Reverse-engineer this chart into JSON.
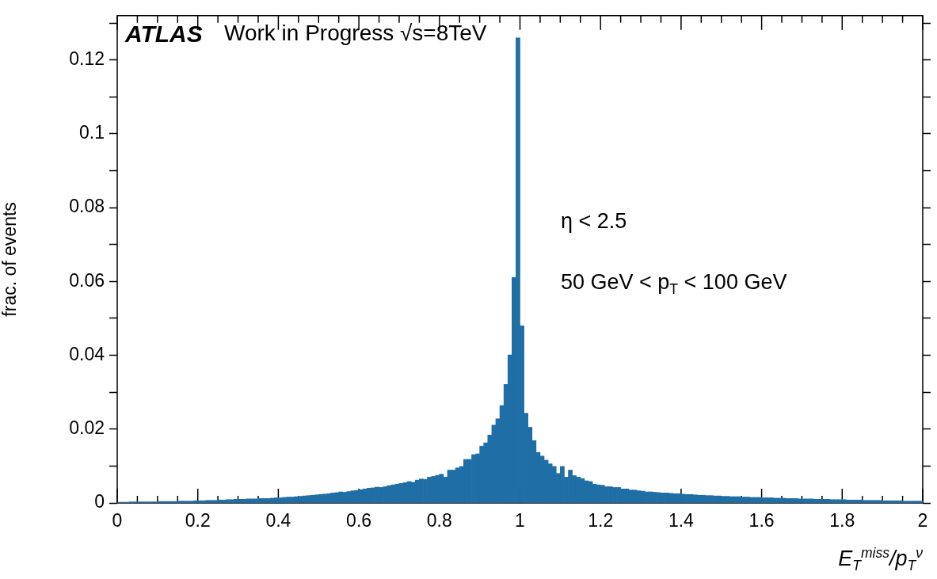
{
  "chart_data": {
    "type": "histogram",
    "xlabel": "E$_{T}$$^{miss}$/p$_{T}$$^{ν}$",
    "ylabel": "frac. of events",
    "annotations": [
      "ATLAS",
      "Work in Progress √s=8TeV",
      "η < 2.5",
      "50 GeV < p$_{T}$ < 100 GeV"
    ],
    "color": "#1f6ea6",
    "grid": false,
    "xlim": [
      0,
      2
    ],
    "ylim": [
      0,
      0.132
    ],
    "xticks": [
      0,
      {
        "value": 0.05,
        "label": null
      },
      {
        "value": 0.1,
        "label": null
      },
      {
        "value": 0.15,
        "label": null
      },
      0.2,
      {
        "value": 0.25,
        "label": null
      },
      {
        "value": 0.3,
        "label": null
      },
      {
        "value": 0.35,
        "label": null
      },
      0.4,
      {
        "value": 0.45,
        "label": null
      },
      {
        "value": 0.5,
        "label": null
      },
      {
        "value": 0.55,
        "label": null
      },
      0.6,
      {
        "value": 0.65,
        "label": null
      },
      {
        "value": 0.7,
        "label": null
      },
      {
        "value": 0.75,
        "label": null
      },
      0.8,
      {
        "value": 0.85,
        "label": null
      },
      {
        "value": 0.9,
        "label": null
      },
      {
        "value": 0.95,
        "label": null
      },
      1,
      {
        "value": 1.05,
        "label": null
      },
      {
        "value": 1.1,
        "label": null
      },
      {
        "value": 1.15,
        "label": null
      },
      1.2,
      {
        "value": 1.25,
        "label": null
      },
      {
        "value": 1.3,
        "label": null
      },
      {
        "value": 1.35,
        "label": null
      },
      1.4,
      {
        "value": 1.45,
        "label": null
      },
      {
        "value": 1.5,
        "label": null
      },
      {
        "value": 1.55,
        "label": null
      },
      1.6,
      {
        "value": 1.65,
        "label": null
      },
      {
        "value": 1.7,
        "label": null
      },
      {
        "value": 1.75,
        "label": null
      },
      1.8,
      {
        "value": 1.85,
        "label": null
      },
      {
        "value": 1.9,
        "label": null
      },
      {
        "value": 1.95,
        "label": null
      },
      2
    ],
    "yticks": [
      0,
      {
        "value": 0.01,
        "label": null
      },
      0.02,
      {
        "value": 0.03,
        "label": null
      },
      0.04,
      {
        "value": 0.05,
        "label": null
      },
      0.06,
      {
        "value": 0.07,
        "label": null
      },
      0.08,
      {
        "value": 0.09,
        "label": null
      },
      0.1,
      {
        "value": 0.11,
        "label": null
      },
      0.12,
      {
        "value": 0.13,
        "label": null
      }
    ],
    "bins": [
      0,
      0.01,
      0.02,
      0.03,
      0.04,
      0.05,
      0.06,
      0.07,
      0.08,
      0.09,
      0.1,
      0.11,
      0.12,
      0.13,
      0.14,
      0.15,
      0.16,
      0.17,
      0.18,
      0.19,
      0.2,
      0.21,
      0.22,
      0.23,
      0.24,
      0.25,
      0.26,
      0.27,
      0.28,
      0.29,
      0.3,
      0.31,
      0.32,
      0.33,
      0.34,
      0.35,
      0.36,
      0.37,
      0.38,
      0.39,
      0.4,
      0.41,
      0.42,
      0.43,
      0.44,
      0.45,
      0.46,
      0.47,
      0.48,
      0.49,
      0.5,
      0.51,
      0.52,
      0.53,
      0.54,
      0.55,
      0.56,
      0.57,
      0.58,
      0.59,
      0.6,
      0.61,
      0.62,
      0.63,
      0.64,
      0.65,
      0.66,
      0.67,
      0.68,
      0.69,
      0.7,
      0.71,
      0.72,
      0.73,
      0.74,
      0.75,
      0.76,
      0.77,
      0.78,
      0.79,
      0.8,
      0.81,
      0.82,
      0.83,
      0.84,
      0.85,
      0.86,
      0.87,
      0.88,
      0.89,
      0.9,
      0.91,
      0.92,
      0.93,
      0.94,
      0.95,
      0.96,
      0.97,
      0.98,
      0.99,
      1,
      1.01,
      1.02,
      1.03,
      1.04,
      1.05,
      1.06,
      1.07,
      1.08,
      1.09,
      1.1,
      1.11,
      1.12,
      1.13,
      1.14,
      1.15,
      1.16,
      1.17,
      1.18,
      1.19,
      1.2,
      1.21,
      1.22,
      1.23,
      1.24,
      1.25,
      1.26,
      1.27,
      1.28,
      1.29,
      1.3,
      1.31,
      1.32,
      1.33,
      1.34,
      1.35,
      1.36,
      1.37,
      1.38,
      1.39,
      1.4,
      1.41,
      1.42,
      1.43,
      1.44,
      1.45,
      1.46,
      1.47,
      1.48,
      1.49,
      1.5,
      1.51,
      1.52,
      1.53,
      1.54,
      1.55,
      1.56,
      1.57,
      1.58,
      1.59,
      1.6,
      1.61,
      1.62,
      1.63,
      1.64,
      1.65,
      1.66,
      1.67,
      1.68,
      1.69,
      1.7,
      1.71,
      1.72,
      1.73,
      1.74,
      1.75,
      1.76,
      1.77,
      1.78,
      1.79,
      1.8,
      1.81,
      1.82,
      1.83,
      1.84,
      1.85,
      1.86,
      1.87,
      1.88,
      1.89,
      1.9,
      1.91,
      1.92,
      1.93,
      1.94,
      1.95,
      1.96,
      1.97,
      1.98,
      1.99,
      2
    ],
    "values": [
      0.0002,
      0.0002,
      0.0002,
      0.0003,
      0.0003,
      0.0003,
      0.0003,
      0.0003,
      0.0003,
      0.0003,
      0.0004,
      0.0004,
      0.0004,
      0.0004,
      0.0004,
      0.0005,
      0.0005,
      0.0005,
      0.0005,
      0.0006,
      0.0006,
      0.0006,
      0.0007,
      0.0007,
      0.0007,
      0.0008,
      0.0008,
      0.0009,
      0.0009,
      0.001,
      0.001,
      0.001,
      0.0011,
      0.0011,
      0.0011,
      0.0012,
      0.0012,
      0.0012,
      0.0013,
      0.0014,
      0.0014,
      0.0015,
      0.0016,
      0.0016,
      0.0017,
      0.0018,
      0.0019,
      0.002,
      0.0021,
      0.0022,
      0.0023,
      0.0024,
      0.0025,
      0.0027,
      0.0028,
      0.003,
      0.0029,
      0.0031,
      0.0033,
      0.0034,
      0.0036,
      0.0038,
      0.004,
      0.0041,
      0.0043,
      0.0042,
      0.0044,
      0.0047,
      0.0049,
      0.0051,
      0.0053,
      0.0055,
      0.0058,
      0.0056,
      0.0062,
      0.0065,
      0.0064,
      0.007,
      0.0072,
      0.0075,
      0.0078,
      0.007,
      0.0089,
      0.0089,
      0.0095,
      0.0099,
      0.0118,
      0.0118,
      0.0131,
      0.0133,
      0.0154,
      0.0163,
      0.0184,
      0.0211,
      0.0228,
      0.0264,
      0.0321,
      0.0401,
      0.0611,
      0.126,
      0.048,
      0.0243,
      0.0205,
      0.0169,
      0.0137,
      0.0127,
      0.0116,
      0.0106,
      0.0099,
      0.008,
      0.0099,
      0.007,
      0.0089,
      0.0074,
      0.007,
      0.0066,
      0.006,
      0.0058,
      0.0051,
      0.0049,
      0.0048,
      0.0044,
      0.0044,
      0.0042,
      0.0042,
      0.0038,
      0.0038,
      0.0035,
      0.0035,
      0.0033,
      0.0032,
      0.003,
      0.003,
      0.0029,
      0.0028,
      0.0027,
      0.0027,
      0.0026,
      0.0025,
      0.0025,
      0.0024,
      0.0023,
      0.0023,
      0.0022,
      0.0021,
      0.0021,
      0.002,
      0.002,
      0.0019,
      0.0019,
      0.0018,
      0.0018,
      0.0017,
      0.0017,
      0.0017,
      0.0016,
      0.0016,
      0.0015,
      0.0015,
      0.0015,
      0.0014,
      0.0014,
      0.0014,
      0.0013,
      0.0013,
      0.0013,
      0.0012,
      0.0012,
      0.0012,
      0.0011,
      0.0011,
      0.0011,
      0.0011,
      0.001,
      0.001,
      0.001,
      0.001,
      0.0009,
      0.0009,
      0.0009,
      0.0009,
      0.0008,
      0.0008,
      0.0008,
      0.0008,
      0.0007,
      0.0007,
      0.0007,
      0.0007,
      0.0007,
      0.0006,
      0.0006,
      0.0006,
      0.0006,
      0.0006,
      0.0005,
      0.0005,
      0.0005,
      0.0005,
      0.0005
    ]
  }
}
